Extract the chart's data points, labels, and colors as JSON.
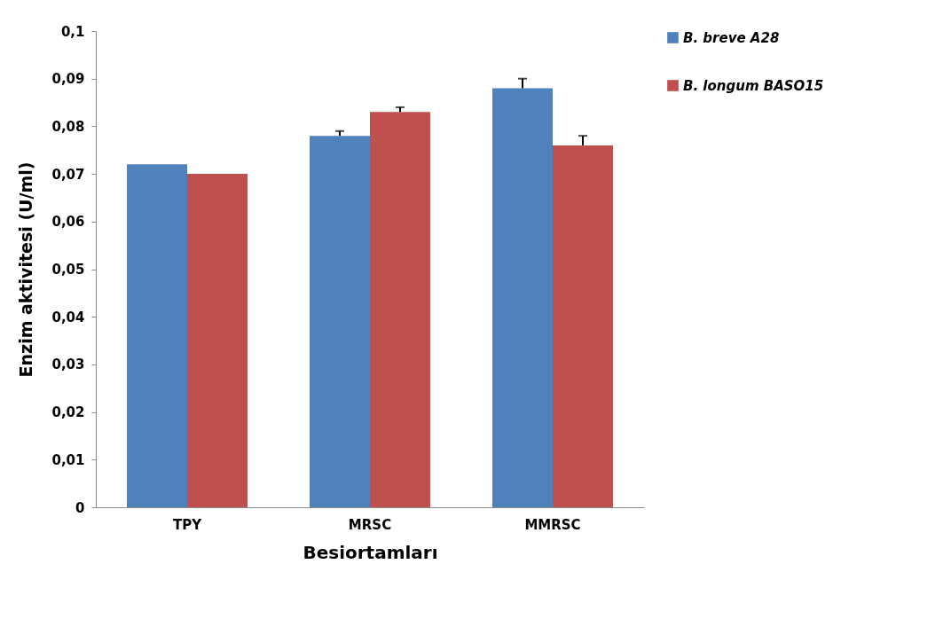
{
  "chart_data": {
    "type": "bar",
    "xlabel": "Besiortamları",
    "ylabel": "Enzim aktivitesi (U/ml)",
    "categories": [
      "TPY",
      "MRSC",
      "MMRSC"
    ],
    "series": [
      {
        "name": "B. breve A28",
        "color": "#4f81bd",
        "values": [
          0.072,
          0.078,
          0.088
        ],
        "errors": [
          null,
          [
            0.078,
            0.079
          ],
          [
            0.088,
            0.09
          ]
        ]
      },
      {
        "name": "B. longum BASO15",
        "color": "#c0504d",
        "values": [
          0.07,
          0.083,
          0.076
        ],
        "errors": [
          null,
          [
            0.083,
            0.084
          ],
          [
            0.076,
            0.078
          ]
        ]
      }
    ],
    "ylim": [
      0,
      0.1
    ],
    "yticks": [
      0,
      {
        "value": 0.01,
        "label": "0,01"
      },
      {
        "value": 0.02,
        "label": "0,02"
      },
      {
        "value": 0.03,
        "label": "0,03"
      },
      {
        "value": 0.04,
        "label": "0,04"
      },
      {
        "value": 0.05,
        "label": "0,05"
      },
      {
        "value": 0.06,
        "label": "0,06"
      },
      {
        "value": 0.07,
        "label": "0,07"
      },
      {
        "value": 0.08,
        "label": "0,08"
      },
      {
        "value": 0.09,
        "label": "0,09"
      },
      {
        "value": 0.1,
        "label": "0,1"
      }
    ],
    "grid": false,
    "legend": "right"
  }
}
